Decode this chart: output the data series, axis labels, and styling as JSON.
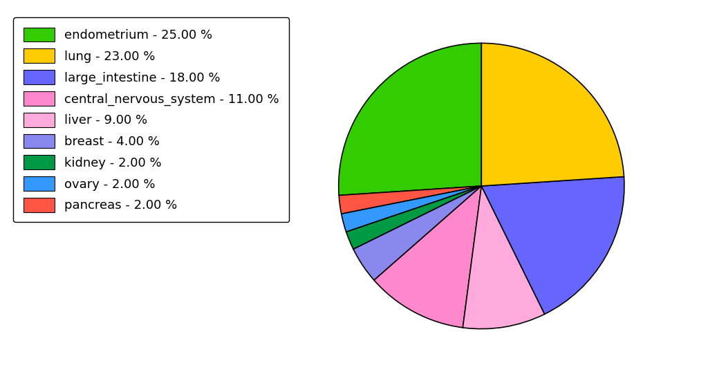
{
  "labels": [
    "endometrium",
    "lung",
    "large_intestine",
    "central_nervous_system",
    "liver",
    "breast",
    "kidney",
    "ovary",
    "pancreas"
  ],
  "values": [
    25.0,
    23.0,
    18.0,
    11.0,
    9.0,
    4.0,
    2.0,
    2.0,
    2.0
  ],
  "colors": [
    "#33cc00",
    "#ffcc00",
    "#6666ff",
    "#ff88cc",
    "#ffaadd",
    "#8888ee",
    "#009944",
    "#3399ff",
    "#ff5544"
  ],
  "legend_labels": [
    "endometrium - 25.00 %",
    "lung - 23.00 %",
    "large_intestine - 18.00 %",
    "central_nervous_system - 11.00 %",
    "liver - 9.00 %",
    "breast - 4.00 %",
    "kidney - 2.00 %",
    "ovary - 2.00 %",
    "pancreas - 2.00 %"
  ],
  "background_color": "#ffffff",
  "legend_fontsize": 13,
  "startangle": 90
}
